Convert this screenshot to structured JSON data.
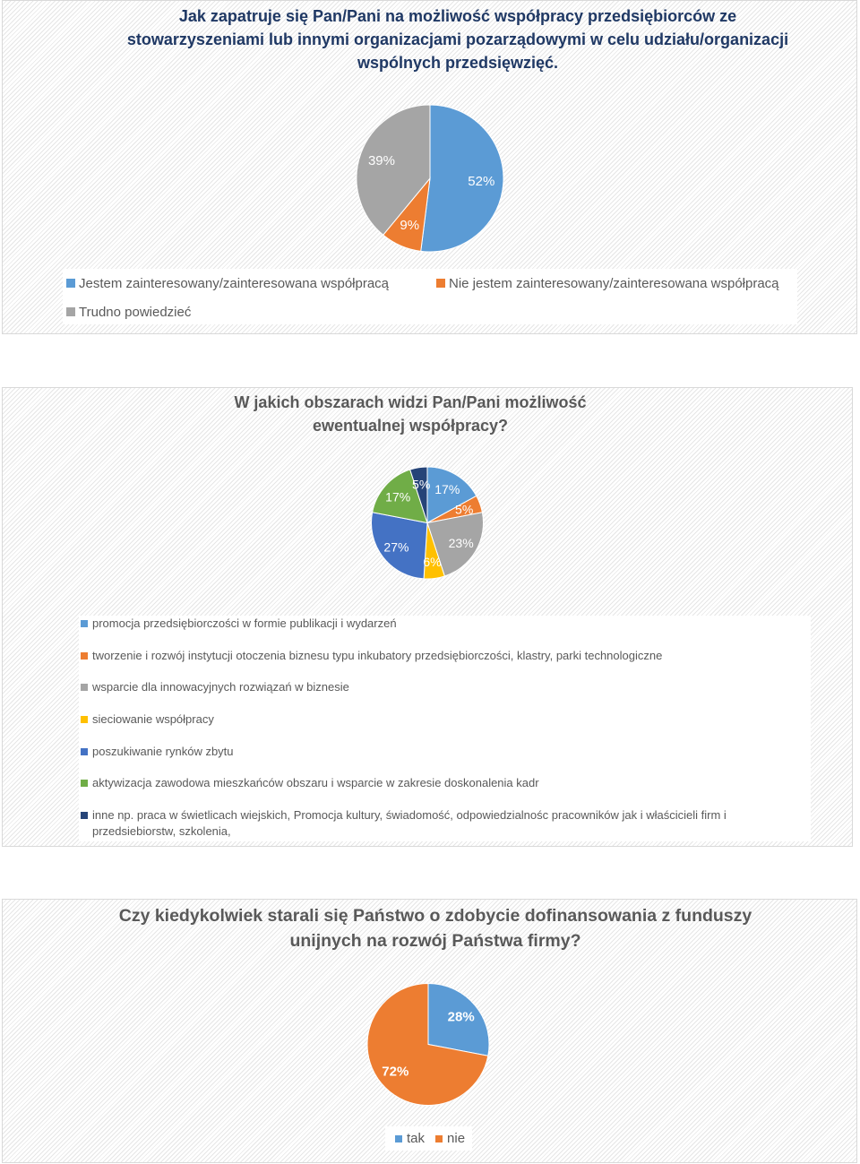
{
  "chart_data": [
    {
      "type": "pie",
      "title": "Jak zapatruje się Pan/Pani na możliwość współpracy przedsiębiorców ze\nstowarzyszeniami lub innymi organizacjami pozarządowymi w celu udziału/organizacji\nwspólnych przedsięwzięć.",
      "categories": [
        "Jestem zainteresowany/zainteresowana współpracą",
        "Nie jestem zainteresowany/zainteresowana współpracą",
        "Trudno powiedzieć"
      ],
      "values": [
        52,
        9,
        39
      ],
      "value_suffix": "%",
      "colors": [
        "#5B9BD5",
        "#ED7D31",
        "#A5A5A5"
      ],
      "legend": "bottom"
    },
    {
      "type": "pie",
      "title": "W jakich obszarach widzi Pan/Pani możliwość\newentualnej współpracy?",
      "categories": [
        "promocja przedsiębiorczości w formie publikacji i wydarzeń",
        "tworzenie i rozwój instytucji otoczenia biznesu typu inkubatory przedsiębiorczości, klastry, parki technologiczne",
        "wsparcie dla innowacyjnych rozwiązań w biznesie",
        "sieciowanie współpracy",
        "poszukiwanie rynków zbytu",
        "aktywizacja zawodowa mieszkańców obszaru i wsparcie  w zakresie doskonalenia kadr",
        "inne np. praca w świetlicach wiejskich, Promocja kultury, świadomość, odpowiedzialnośc pracowników jak i właścicieli firm i przedsiebiorstw, szkolenia,"
      ],
      "values": [
        17,
        5,
        23,
        6,
        27,
        17,
        5
      ],
      "value_suffix": "%",
      "colors": [
        "#5B9BD5",
        "#ED7D31",
        "#A5A5A5",
        "#FFC000",
        "#4472C4",
        "#70AD47",
        "#264478"
      ],
      "legend": "bottom"
    },
    {
      "type": "pie",
      "title": "Czy kiedykolwiek starali się Państwo o zdobycie dofinansowania z funduszy\nunijnych na rozwój Państwa firmy?",
      "categories": [
        "tak",
        "nie"
      ],
      "values": [
        28,
        72
      ],
      "value_suffix": "%",
      "colors": [
        "#5B9BD5",
        "#ED7D31"
      ],
      "legend": "bottom"
    }
  ]
}
